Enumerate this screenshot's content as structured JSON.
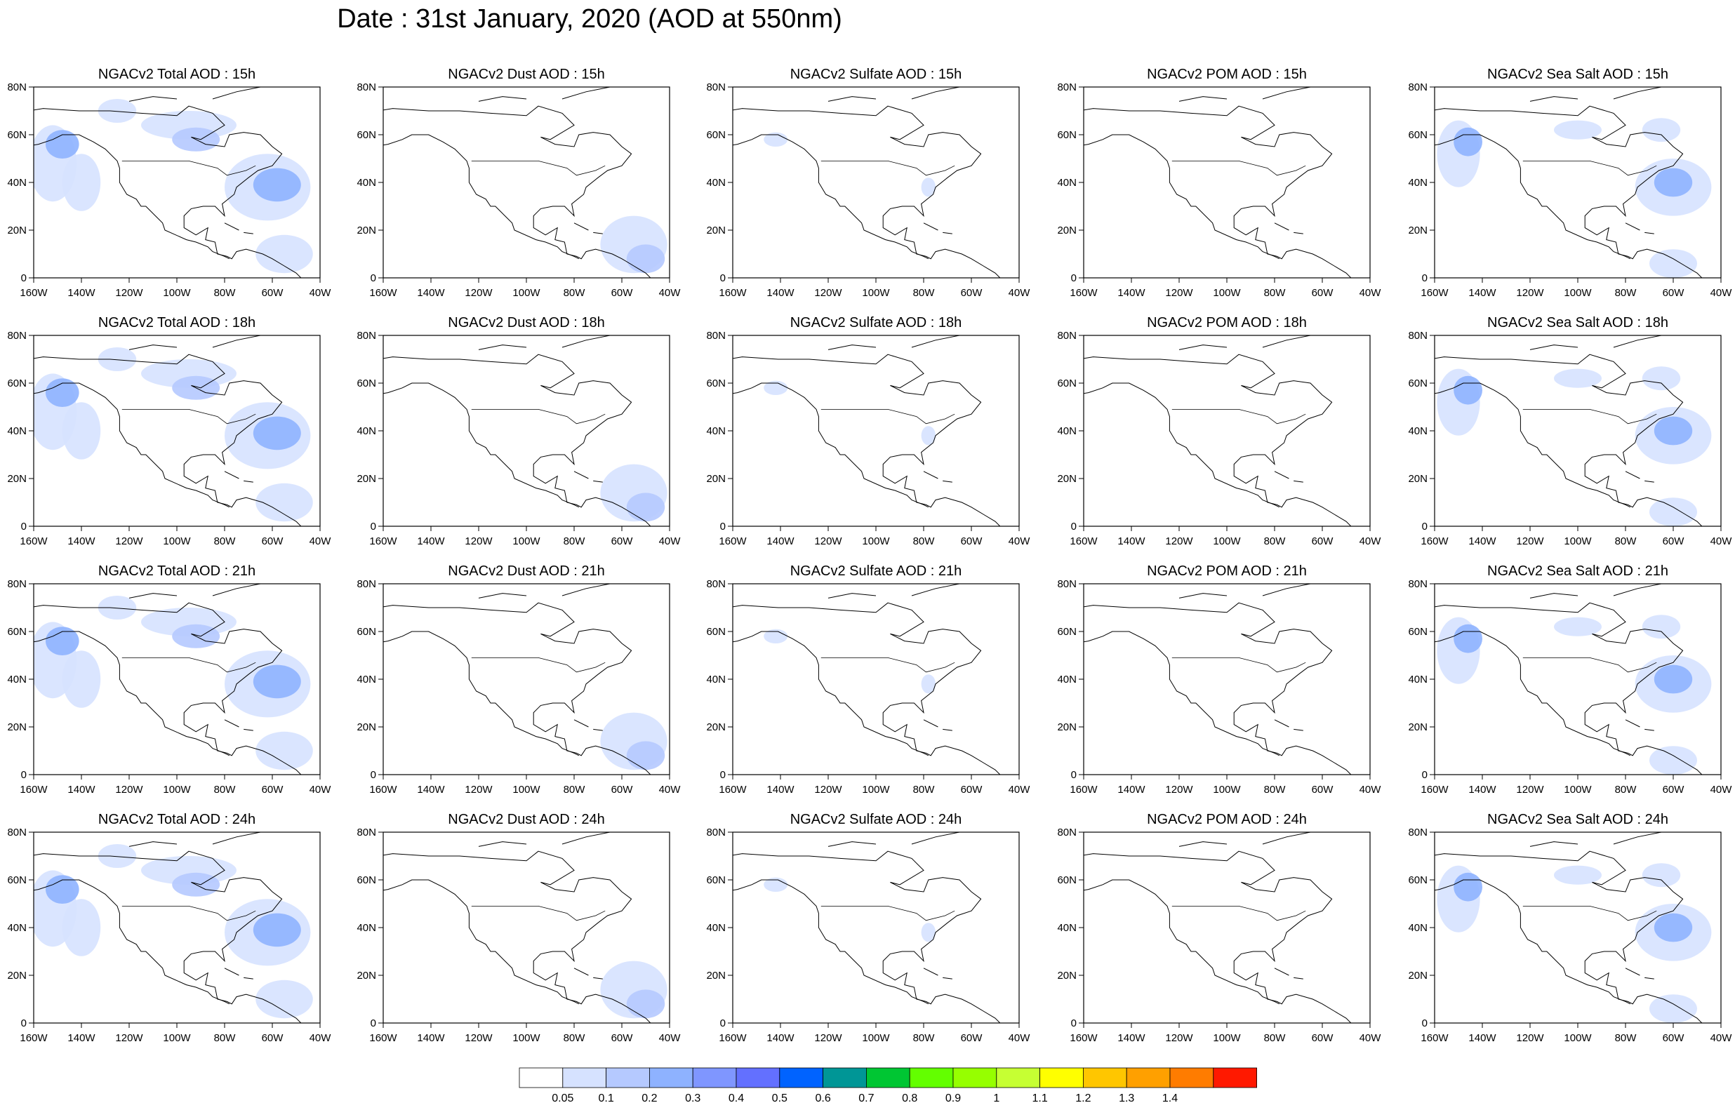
{
  "title": "Date : 31st January, 2020 (AOD at 550nm)",
  "lon_ticks": [
    "160W",
    "140W",
    "120W",
    "100W",
    "80W",
    "60W",
    "40W"
  ],
  "lat_ticks": [
    "0",
    "20N",
    "40N",
    "60N",
    "80N"
  ],
  "panels": [
    [
      "NGACv2 Total AOD : 15h",
      "NGACv2 Dust AOD : 15h",
      "NGACv2 Sulfate AOD : 15h",
      "NGACv2 POM AOD : 15h",
      "NGACv2 Sea Salt AOD : 15h"
    ],
    [
      "NGACv2 Total AOD : 18h",
      "NGACv2 Dust AOD : 18h",
      "NGACv2 Sulfate AOD : 18h",
      "NGACv2 POM AOD : 18h",
      "NGACv2 Sea Salt AOD : 18h"
    ],
    [
      "NGACv2 Total AOD : 21h",
      "NGACv2 Dust AOD : 21h",
      "NGACv2 Sulfate AOD : 21h",
      "NGACv2 POM AOD : 21h",
      "NGACv2 Sea Salt AOD : 21h"
    ],
    [
      "NGACv2 Total AOD : 24h",
      "NGACv2 Dust AOD : 24h",
      "NGACv2 Sulfate AOD : 24h",
      "NGACv2 POM AOD : 24h",
      "NGACv2 Sea Salt  AOD : 24h"
    ]
  ],
  "colorbar": {
    "colors": [
      "#ffffff",
      "#d6e2ff",
      "#b5c9ff",
      "#8eb2ff",
      "#7f96ff",
      "#6370ff",
      "#0063ff",
      "#009696",
      "#00c633",
      "#63ff00",
      "#96ff00",
      "#c6ff33",
      "#ffff00",
      "#ffc600",
      "#ffa000",
      "#ff7c00",
      "#ff1900"
    ],
    "labels": [
      "0.05",
      "0.1",
      "0.2",
      "0.3",
      "0.4",
      "0.5",
      "0.6",
      "0.7",
      "0.8",
      "0.9",
      "1",
      "1.1",
      "1.2",
      "1.3",
      "1.4"
    ]
  }
}
